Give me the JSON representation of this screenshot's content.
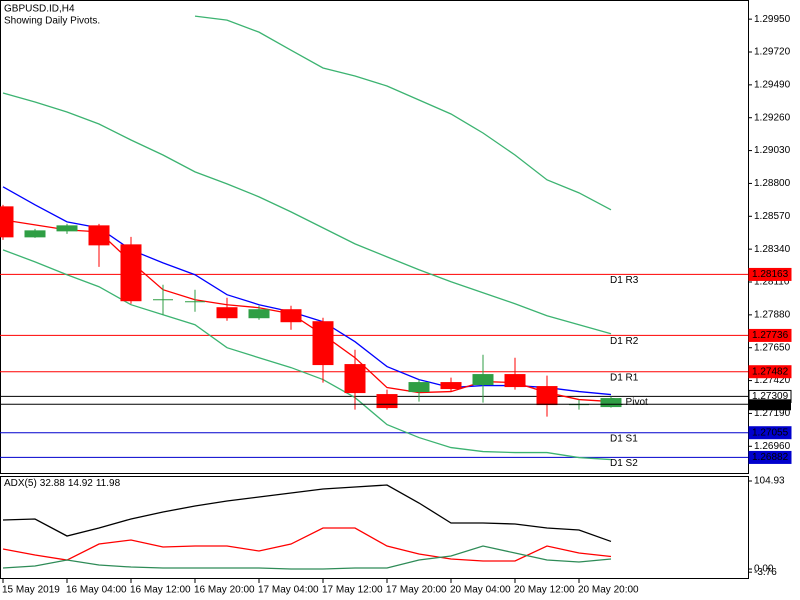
{
  "chart_data": [
    {
      "type": "candlestick",
      "title": "GBPUSD.ID,H4",
      "subtitle": "Showing Daily Pivots.",
      "categories": [
        "15 May 2019",
        null,
        "16 May 04:00",
        null,
        "16 May 12:00",
        null,
        "16 May 20:00",
        null,
        "17 May 04:00",
        null,
        "17 May 12:00",
        null,
        "17 May 20:00",
        null,
        "20 May 04:00",
        null,
        "20 May 12:00",
        null,
        "20 May 20:00",
        null
      ],
      "open": [
        1.28636,
        1.28426,
        1.28468,
        1.28503,
        1.2837,
        1.27986,
        1.27972,
        1.2793,
        1.2786,
        1.27916,
        1.27832,
        1.27532,
        1.27322,
        1.27343,
        1.27406,
        1.27392,
        1.27462,
        1.27378,
        1.27252,
        1.27238
      ],
      "high": [
        1.2865,
        1.28482,
        1.28517,
        1.28517,
        1.28426,
        1.28091,
        1.28056,
        1.28,
        1.27944,
        1.27944,
        1.2786,
        1.27636,
        1.27357,
        1.27427,
        1.27441,
        1.27601,
        1.2758,
        1.27455,
        1.27287,
        1.27308
      ],
      "low": [
        1.28405,
        1.28419,
        1.28447,
        1.28216,
        1.27958,
        1.27881,
        1.27902,
        1.27839,
        1.27846,
        1.27776,
        1.27406,
        1.27217,
        1.27217,
        1.27273,
        1.27343,
        1.27266,
        1.27357,
        1.27168,
        1.27217,
        1.27231
      ],
      "close": [
        1.28426,
        1.28468,
        1.28503,
        1.2837,
        1.27979,
        1.27986,
        1.27972,
        1.2786,
        1.27916,
        1.27832,
        1.27532,
        1.27336,
        1.27231,
        1.27406,
        1.27364,
        1.27462,
        1.27378,
        1.27252,
        1.27252,
        1.27294
      ],
      "up_color": "#2f9e44",
      "down_color": "#ff0000",
      "series": [
        {
          "color": "#3cb371",
          "values": [
            null,
            null,
            null,
            null,
            null,
            null,
            1.29971,
            1.29943,
            1.29859,
            1.29733,
            1.29608,
            1.29552,
            1.29482,
            1.29384,
            1.29286,
            1.29153,
            1.28999,
            1.28825,
            1.28734,
            1.28615
          ]
        },
        {
          "color": "#3cb371",
          "values": [
            1.29433,
            1.2937,
            1.293,
            1.29216,
            1.29104,
            1.28999,
            1.28881,
            1.28797,
            1.28706,
            1.28601,
            1.28489,
            1.28377,
            1.28286,
            1.28196,
            1.28112,
            1.28035,
            1.27958,
            1.27874,
            1.27811,
            1.27748
          ]
        },
        {
          "color": "#3cb371",
          "values": [
            1.28335,
            1.28251,
            1.28161,
            1.28077,
            1.27951,
            1.27881,
            1.27811,
            1.2765,
            1.2758,
            1.27511,
            1.27427,
            1.27301,
            1.27112,
            1.27021,
            1.26951,
            1.26923,
            1.26916,
            1.26916,
            1.26881,
            1.26867
          ]
        },
        {
          "color": "#0000ff",
          "values": [
            1.28776,
            1.2865,
            1.28531,
            1.28489,
            1.28335,
            1.28244,
            1.28161,
            1.28021,
            1.27951,
            1.27902,
            1.27832,
            1.27692,
            1.27518,
            1.27427,
            1.27371,
            1.27385,
            1.27385,
            1.27371,
            1.27343,
            1.27322
          ]
        },
        {
          "color": "#ff0000",
          "values": [
            1.28545,
            1.2851,
            1.28475,
            1.28461,
            1.28251,
            1.28056,
            1.27986,
            1.27951,
            1.2793,
            1.27888,
            1.27741,
            1.2758,
            1.27371,
            1.27336,
            1.27343,
            1.27413,
            1.27406,
            1.27336,
            1.27287,
            1.27273
          ]
        }
      ],
      "levels": [
        {
          "label": "D1 R3",
          "value": 1.28163,
          "color": "#ff0000"
        },
        {
          "label": "D1 R2",
          "value": 1.27736,
          "color": "#ff0000"
        },
        {
          "label": "D1 R1",
          "value": 1.27482,
          "color": "#ff0000"
        },
        {
          "label": "D1 Pivot",
          "value": 1.27309,
          "color": "#000000"
        },
        {
          "label": "D1 S1",
          "value": 1.27055,
          "color": "#0000cd"
        },
        {
          "label": "D1 S2",
          "value": 1.26882,
          "color": "#0000cd"
        }
      ],
      "last_price": 1.27254,
      "ylim": [
        1.2678,
        1.3007
      ],
      "yticks": [
        {
          "value": 1.2995,
          "label": "1.29950"
        },
        {
          "value": 1.2972,
          "label": "1.29720"
        },
        {
          "value": 1.2949,
          "label": "1.29490"
        },
        {
          "value": 1.2926,
          "label": "1.29260"
        },
        {
          "value": 1.2903,
          "label": "1.29030"
        },
        {
          "value": 1.288,
          "label": "1.28800"
        },
        {
          "value": 1.2857,
          "label": "1.28570"
        },
        {
          "value": 1.2834,
          "label": "1.28340"
        },
        {
          "value": 1.2811,
          "label": "1.28110"
        },
        {
          "value": 1.2788,
          "label": "1.27880"
        },
        {
          "value": 1.2765,
          "label": "1.27650"
        },
        {
          "value": 1.2742,
          "label": "1.27420"
        },
        {
          "value": 1.2719,
          "label": "1.27190"
        },
        {
          "value": 1.2696,
          "label": "1.26960"
        }
      ]
    },
    {
      "type": "line",
      "title": "ADX(5)",
      "series": [
        {
          "color": "#000000",
          "values": [
            58.43,
            59.62,
            39.35,
            48.89,
            59.62,
            67.97,
            75.12,
            81.08,
            85.85,
            90.62,
            95.39,
            97.78,
            100.16,
            78.7,
            54.85,
            54.85,
            53.66,
            48.89,
            46.5,
            32.88
          ]
        },
        {
          "color": "#ff0000",
          "values": [
            23.85,
            16.69,
            10.73,
            29.81,
            34.58,
            26.23,
            27.43,
            27.43,
            21.46,
            29.81,
            48.89,
            48.89,
            27.43,
            17.89,
            11.92,
            9.54,
            9.54,
            27.43,
            19.08,
            14.92
          ]
        },
        {
          "color": "#2e8b57",
          "values": [
            1.19,
            3.58,
            10.73,
            4.77,
            2.38,
            1.19,
            1.19,
            1.19,
            1.19,
            0,
            0,
            1.19,
            1.19,
            10.73,
            15.5,
            27.43,
            19.08,
            10.73,
            8.35,
            11.98
          ]
        }
      ],
      "ylim": [
        -10.7,
        109.7
      ],
      "yticks": [
        104.93,
        {
          "value": 0,
          "label": "0.00"
        },
        -3.76
      ]
    }
  ]
}
